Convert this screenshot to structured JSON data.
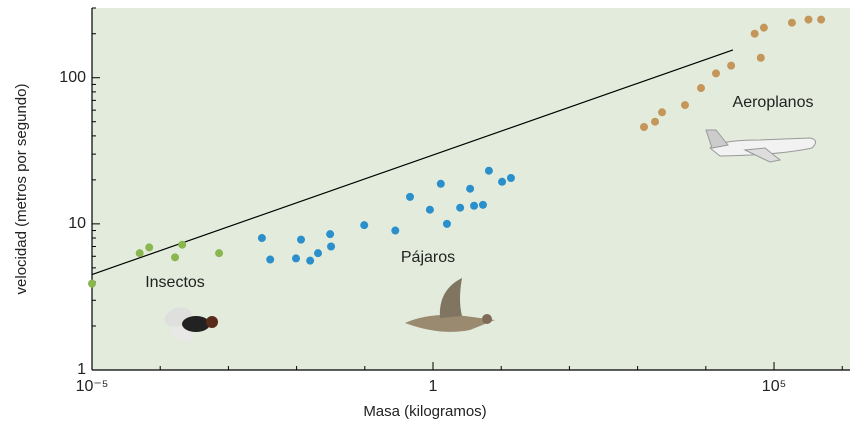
{
  "chart_data": {
    "type": "scatter",
    "x_label": "Masa (kilogramos)",
    "y_label": "velocidad (metros por segundo)",
    "xscale": "log",
    "yscale": "log",
    "xlim": [
      1e-05,
      1300000
    ],
    "ylim": [
      1,
      300
    ],
    "xticks": [
      {
        "value": 1e-05,
        "label": "10⁻⁵"
      },
      1,
      {
        "value": 100000,
        "label": "10⁵"
      }
    ],
    "xminorticks": [
      0.0001,
      0.001,
      0.01,
      0.1,
      10,
      100,
      1000,
      10000,
      1000000
    ],
    "yticks": [
      1,
      10,
      100
    ],
    "yminorticks": [
      2,
      3,
      4,
      5,
      6,
      7,
      8,
      9,
      20,
      30,
      40,
      50,
      60,
      70,
      80,
      90,
      200,
      300
    ],
    "background": "#e3ecdc",
    "series": [
      {
        "name": "Insectos",
        "color": "#8ab650",
        "x": [
          1e-05,
          5e-05,
          6.9e-05,
          0.000165,
          0.00021,
          0.00073
        ],
        "values": [
          3.9,
          6.3,
          6.9,
          5.9,
          7.2,
          6.3
        ]
      },
      {
        "name": "Pájaros",
        "color": "#2a8fcb",
        "x": [
          0.0031,
          0.0041,
          0.0098,
          0.0116,
          0.0158,
          0.0206,
          0.031,
          0.032,
          0.098,
          0.28,
          0.46,
          0.9,
          1.3,
          1.6,
          2.5,
          3.5,
          4.0,
          5.4,
          6.6,
          10.3,
          13.9
        ],
        "values": [
          8.0,
          5.7,
          5.8,
          7.8,
          5.6,
          6.3,
          8.5,
          7.0,
          9.8,
          9.0,
          15.3,
          12.5,
          18.8,
          10,
          12.9,
          17.4,
          13.3,
          13.5,
          23.1,
          19.4,
          20.6
        ]
      },
      {
        "name": "Aeroplanos",
        "color": "#c4965a",
        "x": [
          1240,
          1800,
          2280,
          4950,
          8500,
          14100,
          23500,
          52000,
          64000,
          71000,
          183000,
          320000,
          490000
        ],
        "values": [
          46,
          50,
          58,
          65,
          85,
          107,
          121,
          200,
          137,
          220,
          238,
          250,
          250
        ]
      }
    ],
    "fit_line": {
      "color": "#000000",
      "x": [
        1e-05,
        25000
      ],
      "values": [
        4.5,
        155
      ]
    }
  }
}
